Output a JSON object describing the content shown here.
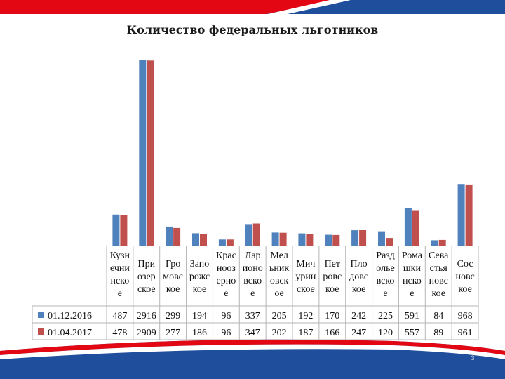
{
  "page": {
    "title": "Количество федеральных льготников",
    "page_number": "3"
  },
  "colors": {
    "series1": "#4f81bd",
    "series2": "#c0504d",
    "banner_blue": "#1f4e9c",
    "banner_red": "#e30613"
  },
  "chart_data": {
    "type": "bar",
    "title": "Количество федеральных льготников",
    "categories": [
      "Кузнечнинское",
      "Приозерское",
      "Громовское",
      "Запорожское",
      "Красноозерное",
      "Ларионовское",
      "Мельниковское",
      "Мичуринское",
      "Петровское",
      "Плодовское",
      "Раздольевское",
      "Ромашкинское",
      "Севастьяновское",
      "Сосновское"
    ],
    "category_label_lines": [
      [
        "Кузн",
        "ечни",
        "нско",
        "е"
      ],
      [
        "При",
        "озер",
        "ское"
      ],
      [
        "Гро",
        "мовс",
        "кое"
      ],
      [
        "Запо",
        "рожс",
        "кое"
      ],
      [
        "Крас",
        "нооз",
        "ерно",
        "е"
      ],
      [
        "Лар",
        "ионо",
        "вско",
        "е"
      ],
      [
        "Мел",
        "ьник",
        "овск",
        "ое"
      ],
      [
        "Мич",
        "урин",
        "ское"
      ],
      [
        "Пет",
        "ровс",
        "кое"
      ],
      [
        "Пло",
        "довс",
        "кое"
      ],
      [
        "Разд",
        "олье",
        "вско",
        "е"
      ],
      [
        "Рома",
        "шки",
        "нско",
        "е"
      ],
      [
        "Сева",
        "стья",
        "новс",
        "кое"
      ],
      [
        "Сос",
        "новс",
        "кое"
      ]
    ],
    "series": [
      {
        "name": "01.12.2016",
        "values": [
          487,
          2916,
          299,
          194,
          96,
          337,
          205,
          192,
          170,
          242,
          225,
          591,
          84,
          968
        ]
      },
      {
        "name": "01.04.2017",
        "values": [
          478,
          2909,
          277,
          186,
          96,
          347,
          202,
          187,
          166,
          247,
          120,
          557,
          89,
          961
        ]
      }
    ],
    "ylim": [
      0,
      3000
    ],
    "grid": false,
    "legend": "left-of-data-table"
  }
}
